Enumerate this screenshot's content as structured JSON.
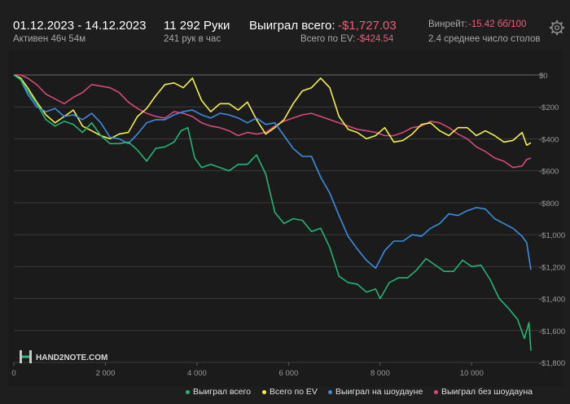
{
  "header": {
    "date_range": "01.12.2023 - 14.12.2023",
    "active_time": "Активен 46ч 54м",
    "hands": "11 292 Руки",
    "hands_per_hour": "241 рук в час",
    "won_total_label": "Выиграл всего:",
    "won_total_value": "-$1,727.03",
    "ev_label": "Всего по EV:",
    "ev_value": "-$424.54",
    "winrate_label": "Винрейт:",
    "winrate_value": "-15.42 бб/100",
    "avg_tables": "2.4 среднее число столов"
  },
  "watermark": "HAND2NOTE.COM",
  "colors": {
    "won_total": "#22b573",
    "ev": "#f4f046",
    "showdown": "#3a8de0",
    "non_showdown": "#d8487c",
    "background": "#1e1e1e",
    "negative": "#e8607a"
  },
  "icons": {
    "settings": "gear-icon"
  },
  "chart_data": {
    "type": "line",
    "xlabel": "",
    "ylabel": "",
    "xlim": [
      0,
      11292
    ],
    "ylim": [
      -1800,
      0
    ],
    "x_ticks": [
      0,
      2000,
      4000,
      6000,
      8000,
      10000
    ],
    "x_tick_labels": [
      "0",
      "2 000",
      "4 000",
      "6 000",
      "8 000",
      "10 000"
    ],
    "y_ticks": [
      0,
      -200,
      -400,
      -600,
      -800,
      -1000,
      -1200,
      -1400,
      -1600,
      -1800
    ],
    "y_tick_labels": [
      "$0",
      "-$200",
      "-$400",
      "-$600",
      "-$800",
      "-$1,000",
      "-$1,200",
      "-$1,400",
      "-$1,600",
      "-$1,800"
    ],
    "grid": true,
    "legend_position": "bottom",
    "series": [
      {
        "name": "Выиграл всего",
        "color_key": "won_total",
        "points": [
          [
            0,
            0
          ],
          [
            150,
            -30
          ],
          [
            300,
            -100
          ],
          [
            500,
            -180
          ],
          [
            700,
            -280
          ],
          [
            900,
            -320
          ],
          [
            1100,
            -290
          ],
          [
            1300,
            -310
          ],
          [
            1500,
            -360
          ],
          [
            1700,
            -300
          ],
          [
            1900,
            -380
          ],
          [
            2100,
            -430
          ],
          [
            2300,
            -430
          ],
          [
            2500,
            -420
          ],
          [
            2700,
            -470
          ],
          [
            2900,
            -540
          ],
          [
            3100,
            -460
          ],
          [
            3300,
            -450
          ],
          [
            3500,
            -420
          ],
          [
            3650,
            -350
          ],
          [
            3800,
            -330
          ],
          [
            3950,
            -520
          ],
          [
            4100,
            -580
          ],
          [
            4300,
            -560
          ],
          [
            4500,
            -580
          ],
          [
            4700,
            -600
          ],
          [
            4900,
            -560
          ],
          [
            5100,
            -560
          ],
          [
            5300,
            -500
          ],
          [
            5500,
            -620
          ],
          [
            5700,
            -860
          ],
          [
            5900,
            -930
          ],
          [
            6100,
            -900
          ],
          [
            6300,
            -910
          ],
          [
            6500,
            -980
          ],
          [
            6700,
            -960
          ],
          [
            6900,
            -1080
          ],
          [
            7100,
            -1260
          ],
          [
            7300,
            -1300
          ],
          [
            7500,
            -1310
          ],
          [
            7700,
            -1360
          ],
          [
            7900,
            -1340
          ],
          [
            8000,
            -1400
          ],
          [
            8200,
            -1300
          ],
          [
            8400,
            -1270
          ],
          [
            8600,
            -1270
          ],
          [
            8800,
            -1220
          ],
          [
            9000,
            -1150
          ],
          [
            9200,
            -1190
          ],
          [
            9400,
            -1230
          ],
          [
            9600,
            -1230
          ],
          [
            9800,
            -1160
          ],
          [
            10000,
            -1200
          ],
          [
            10200,
            -1190
          ],
          [
            10400,
            -1280
          ],
          [
            10600,
            -1400
          ],
          [
            10800,
            -1460
          ],
          [
            11000,
            -1530
          ],
          [
            11150,
            -1650
          ],
          [
            11250,
            -1550
          ],
          [
            11292,
            -1727.03
          ]
        ]
      },
      {
        "name": "Всего по EV",
        "color_key": "ev",
        "points": [
          [
            0,
            0
          ],
          [
            150,
            -20
          ],
          [
            300,
            -80
          ],
          [
            500,
            -170
          ],
          [
            700,
            -250
          ],
          [
            900,
            -300
          ],
          [
            1100,
            -260
          ],
          [
            1300,
            -220
          ],
          [
            1500,
            -320
          ],
          [
            1700,
            -350
          ],
          [
            1900,
            -380
          ],
          [
            2100,
            -400
          ],
          [
            2300,
            -370
          ],
          [
            2500,
            -360
          ],
          [
            2700,
            -260
          ],
          [
            2900,
            -210
          ],
          [
            3100,
            -130
          ],
          [
            3300,
            -60
          ],
          [
            3500,
            -50
          ],
          [
            3700,
            -80
          ],
          [
            3900,
            -20
          ],
          [
            4100,
            -160
          ],
          [
            4300,
            -230
          ],
          [
            4500,
            -180
          ],
          [
            4700,
            -180
          ],
          [
            4900,
            -220
          ],
          [
            5100,
            -170
          ],
          [
            5300,
            -280
          ],
          [
            5500,
            -370
          ],
          [
            5700,
            -330
          ],
          [
            5900,
            -280
          ],
          [
            6100,
            -180
          ],
          [
            6300,
            -100
          ],
          [
            6500,
            -80
          ],
          [
            6700,
            -20
          ],
          [
            6900,
            -80
          ],
          [
            7100,
            -260
          ],
          [
            7300,
            -340
          ],
          [
            7500,
            -360
          ],
          [
            7700,
            -400
          ],
          [
            7900,
            -380
          ],
          [
            8100,
            -330
          ],
          [
            8300,
            -420
          ],
          [
            8500,
            -410
          ],
          [
            8700,
            -370
          ],
          [
            8900,
            -310
          ],
          [
            9100,
            -300
          ],
          [
            9300,
            -350
          ],
          [
            9500,
            -380
          ],
          [
            9700,
            -330
          ],
          [
            9900,
            -330
          ],
          [
            10100,
            -380
          ],
          [
            10300,
            -350
          ],
          [
            10500,
            -380
          ],
          [
            10700,
            -420
          ],
          [
            10900,
            -410
          ],
          [
            11100,
            -360
          ],
          [
            11200,
            -440
          ],
          [
            11292,
            -424.54
          ]
        ]
      },
      {
        "name": "Выиграл на шоудауне",
        "color_key": "showdown",
        "points": [
          [
            0,
            0
          ],
          [
            150,
            -30
          ],
          [
            300,
            -120
          ],
          [
            500,
            -200
          ],
          [
            700,
            -230
          ],
          [
            900,
            -210
          ],
          [
            1100,
            -260
          ],
          [
            1300,
            -250
          ],
          [
            1500,
            -280
          ],
          [
            1700,
            -240
          ],
          [
            1900,
            -300
          ],
          [
            2100,
            -390
          ],
          [
            2300,
            -400
          ],
          [
            2500,
            -430
          ],
          [
            2700,
            -370
          ],
          [
            2900,
            -300
          ],
          [
            3100,
            -280
          ],
          [
            3300,
            -280
          ],
          [
            3500,
            -250
          ],
          [
            3700,
            -230
          ],
          [
            3900,
            -220
          ],
          [
            4100,
            -250
          ],
          [
            4300,
            -270
          ],
          [
            4500,
            -240
          ],
          [
            4700,
            -250
          ],
          [
            4900,
            -270
          ],
          [
            5100,
            -300
          ],
          [
            5300,
            -270
          ],
          [
            5500,
            -310
          ],
          [
            5700,
            -300
          ],
          [
            5900,
            -380
          ],
          [
            6100,
            -460
          ],
          [
            6300,
            -510
          ],
          [
            6500,
            -510
          ],
          [
            6700,
            -640
          ],
          [
            6900,
            -740
          ],
          [
            7100,
            -880
          ],
          [
            7300,
            -1010
          ],
          [
            7500,
            -1090
          ],
          [
            7700,
            -1160
          ],
          [
            7900,
            -1210
          ],
          [
            8100,
            -1100
          ],
          [
            8300,
            -1040
          ],
          [
            8500,
            -1040
          ],
          [
            8700,
            -1000
          ],
          [
            8900,
            -1010
          ],
          [
            9100,
            -960
          ],
          [
            9300,
            -930
          ],
          [
            9500,
            -870
          ],
          [
            9700,
            -880
          ],
          [
            9900,
            -850
          ],
          [
            10100,
            -830
          ],
          [
            10300,
            -840
          ],
          [
            10500,
            -900
          ],
          [
            10700,
            -930
          ],
          [
            10900,
            -960
          ],
          [
            11100,
            -1010
          ],
          [
            11200,
            -1050
          ],
          [
            11292,
            -1220
          ]
        ]
      },
      {
        "name": "Выиграл без шоудауна",
        "color_key": "non_showdown",
        "points": [
          [
            0,
            0
          ],
          [
            150,
            0
          ],
          [
            300,
            -20
          ],
          [
            500,
            -60
          ],
          [
            700,
            -120
          ],
          [
            900,
            -150
          ],
          [
            1100,
            -180
          ],
          [
            1300,
            -140
          ],
          [
            1500,
            -110
          ],
          [
            1700,
            -60
          ],
          [
            1900,
            -70
          ],
          [
            2100,
            -80
          ],
          [
            2300,
            -110
          ],
          [
            2500,
            -170
          ],
          [
            2700,
            -210
          ],
          [
            2900,
            -240
          ],
          [
            3100,
            -260
          ],
          [
            3300,
            -270
          ],
          [
            3500,
            -230
          ],
          [
            3700,
            -240
          ],
          [
            3900,
            -260
          ],
          [
            4100,
            -300
          ],
          [
            4300,
            -320
          ],
          [
            4500,
            -330
          ],
          [
            4700,
            -350
          ],
          [
            4900,
            -380
          ],
          [
            5100,
            -360
          ],
          [
            5300,
            -370
          ],
          [
            5500,
            -360
          ],
          [
            5700,
            -320
          ],
          [
            5900,
            -290
          ],
          [
            6100,
            -270
          ],
          [
            6300,
            -250
          ],
          [
            6500,
            -240
          ],
          [
            6700,
            -260
          ],
          [
            6900,
            -280
          ],
          [
            7100,
            -300
          ],
          [
            7300,
            -320
          ],
          [
            7500,
            -340
          ],
          [
            7700,
            -350
          ],
          [
            7900,
            -360
          ],
          [
            8100,
            -380
          ],
          [
            8300,
            -380
          ],
          [
            8500,
            -360
          ],
          [
            8700,
            -330
          ],
          [
            8900,
            -320
          ],
          [
            9100,
            -290
          ],
          [
            9300,
            -300
          ],
          [
            9500,
            -330
          ],
          [
            9700,
            -370
          ],
          [
            9900,
            -400
          ],
          [
            10100,
            -450
          ],
          [
            10300,
            -480
          ],
          [
            10500,
            -520
          ],
          [
            10700,
            -540
          ],
          [
            10900,
            -580
          ],
          [
            11100,
            -570
          ],
          [
            11200,
            -530
          ],
          [
            11292,
            -520
          ]
        ]
      }
    ]
  }
}
